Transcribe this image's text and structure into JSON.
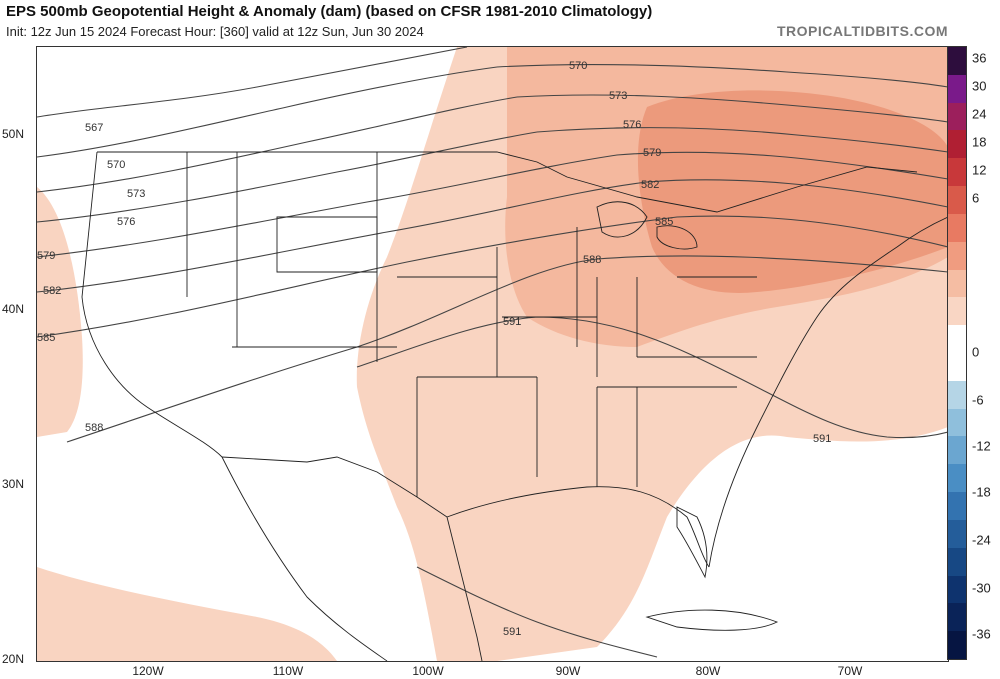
{
  "header": {
    "title": "EPS 500mb Geopotential Height & Anomaly (dam) (based on CFSR 1981-2010 Climatology)",
    "subtitle": "Init: 12z Jun 15 2024   Forecast Hour: [360]   valid at 12z Sun, Jun 30 2024",
    "brand": "TROPICALTIDBITS.COM"
  },
  "map": {
    "lat_labels": [
      "50N",
      "40N",
      "30N",
      "20N"
    ],
    "lon_labels": [
      "120W",
      "110W",
      "100W",
      "90W",
      "80W",
      "70W"
    ],
    "contour_labels": [
      "567",
      "570",
      "570",
      "573",
      "573",
      "576",
      "576",
      "579",
      "579",
      "582",
      "582",
      "585",
      "585",
      "588",
      "588",
      "591",
      "591",
      "591"
    ],
    "colors": {
      "anomaly_6": "#f9d4c1",
      "anomaly_12": "#f4b89e",
      "anomaly_18": "#ec9a7c",
      "contour": "#444444",
      "border": "#222222"
    }
  },
  "colorbar": {
    "labels": [
      "36",
      "30",
      "24",
      "18",
      "12",
      "6",
      "0",
      "-6",
      "-12",
      "-18",
      "-24",
      "-30",
      "-36"
    ],
    "colors": [
      "#2d0d3d",
      "#7a1a8a",
      "#9c1f5c",
      "#b01f33",
      "#c8383a",
      "#d95a4a",
      "#e87a62",
      "#f09c80",
      "#f5bda3",
      "#f9d6c4",
      "#ffffff",
      "#ffffff",
      "#b5d5e6",
      "#8fbfdc",
      "#6ba6d0",
      "#4a8ec4",
      "#3373b0",
      "#245d9a",
      "#174884",
      "#0e336e",
      "#0a2358",
      "#061542"
    ]
  }
}
